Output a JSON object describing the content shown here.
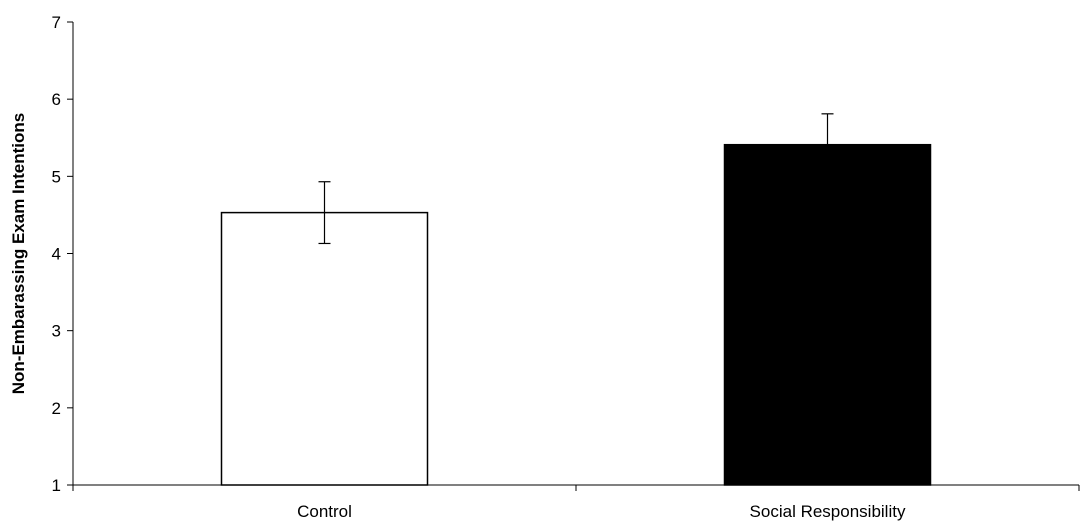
{
  "chart_data": {
    "type": "bar",
    "title": "",
    "xlabel": "",
    "ylabel": "Non-Embarassing Exam Intentions",
    "categories": [
      "Control",
      "Social Responsibility"
    ],
    "values": [
      4.53,
      5.41
    ],
    "error": [
      0.4,
      0.4
    ],
    "bar_colors": [
      "#ffffff",
      "#000000"
    ],
    "ylim": [
      1,
      7
    ],
    "yticks": [
      1,
      2,
      3,
      4,
      5,
      6,
      7
    ],
    "grid": false,
    "legend": "none"
  }
}
